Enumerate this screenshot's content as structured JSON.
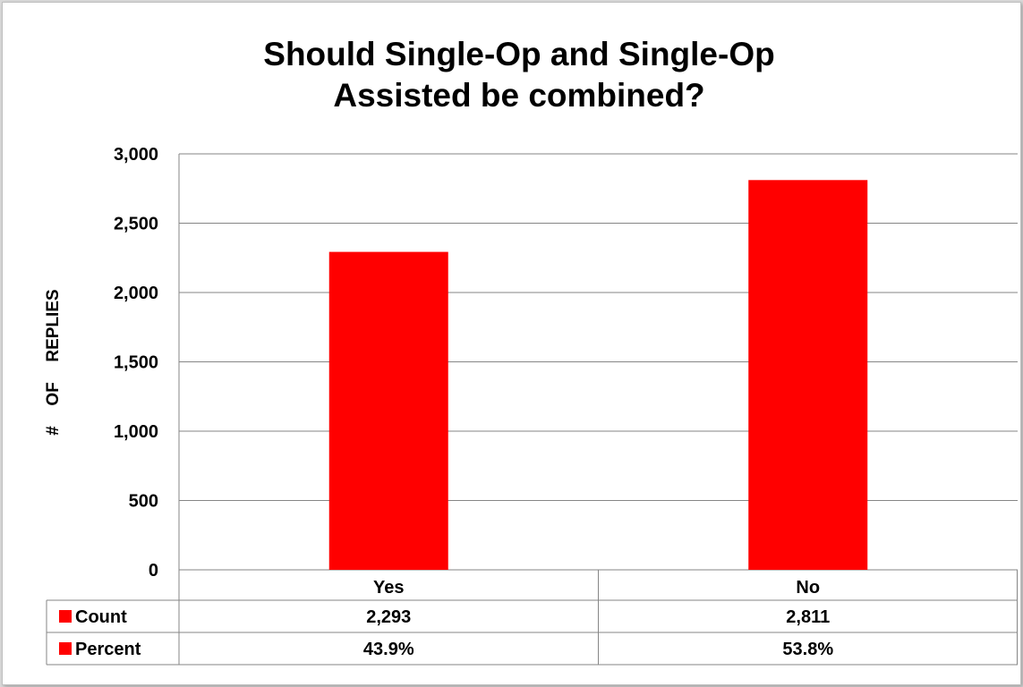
{
  "chart_data": {
    "type": "bar",
    "title": "Should Single-Op and Single-Op Assisted be combined?",
    "title_lines": [
      "Should Single-Op and Single-Op",
      "Assisted be combined?"
    ],
    "ylabel": "#  OF  REPLIES",
    "xlabel": "",
    "categories": [
      "Yes",
      "No"
    ],
    "series": [
      {
        "name": "Count",
        "values": [
          2293,
          2811
        ],
        "color": "#ff0000"
      }
    ],
    "ylim": [
      0,
      3000
    ],
    "yticks": [
      0,
      500,
      1000,
      1500,
      2000,
      2500,
      3000
    ],
    "ytick_labels": [
      "0",
      "500",
      "1,000",
      "1,500",
      "2,000",
      "2,500",
      "3,000"
    ],
    "grid": true,
    "data_table": {
      "rows": [
        {
          "label": "Count",
          "values": [
            "2,293",
            "2,811"
          ]
        },
        {
          "label": "Percent",
          "values": [
            "43.9%",
            "53.8%"
          ]
        }
      ]
    }
  }
}
